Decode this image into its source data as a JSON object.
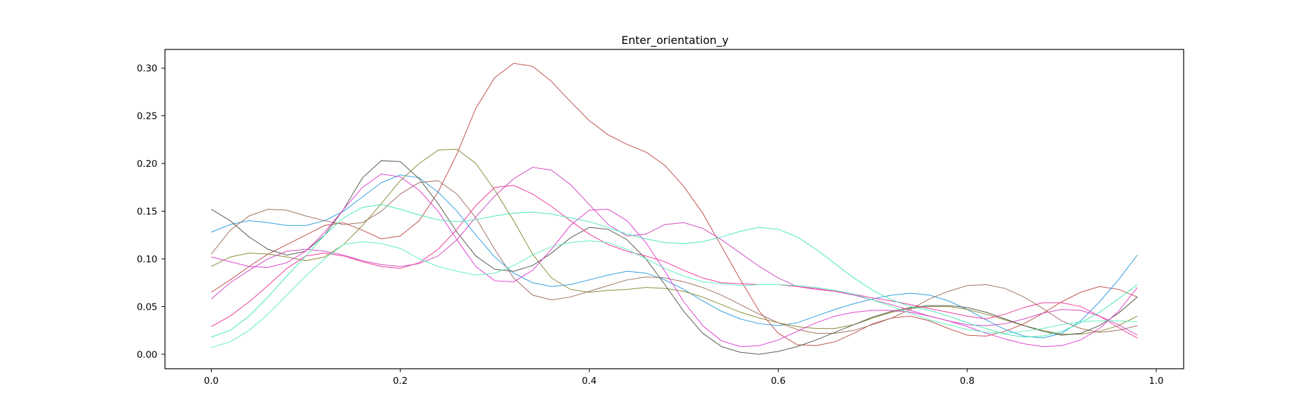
{
  "chart_data": {
    "type": "line",
    "title": "Enter_orientation_y",
    "xlabel": "",
    "ylabel": "",
    "xlim": [
      -0.049,
      1.029
    ],
    "ylim": [
      -0.0152,
      0.3196
    ],
    "xticks": [
      0.0,
      0.2,
      0.4,
      0.6,
      0.8,
      1.0
    ],
    "xtick_labels": [
      "0.0",
      "0.2",
      "0.4",
      "0.6",
      "0.8",
      "1.0"
    ],
    "yticks": [
      0.0,
      0.05,
      0.1,
      0.15,
      0.2,
      0.25,
      0.3
    ],
    "ytick_labels": [
      "0.00",
      "0.05",
      "0.10",
      "0.15",
      "0.20",
      "0.25",
      "0.30"
    ],
    "grid": false,
    "legend": false,
    "x": [
      0.0,
      0.02,
      0.04,
      0.06,
      0.08,
      0.1,
      0.12,
      0.14,
      0.16,
      0.18,
      0.2,
      0.22,
      0.24,
      0.26,
      0.28,
      0.3,
      0.32,
      0.34,
      0.36,
      0.38,
      0.4,
      0.42,
      0.44,
      0.46,
      0.48,
      0.5,
      0.52,
      0.54,
      0.56,
      0.58,
      0.6,
      0.62,
      0.64,
      0.66,
      0.68,
      0.7,
      0.72,
      0.74,
      0.76,
      0.78,
      0.8,
      0.82,
      0.84,
      0.86,
      0.88,
      0.9,
      0.92,
      0.94,
      0.96,
      0.98
    ],
    "series": [
      {
        "color": "#c0504d",
        "values": [
          0.065,
          0.078,
          0.092,
          0.105,
          0.115,
          0.125,
          0.135,
          0.138,
          0.13,
          0.121,
          0.124,
          0.14,
          0.17,
          0.21,
          0.258,
          0.29,
          0.305,
          0.302,
          0.286,
          0.265,
          0.245,
          0.23,
          0.22,
          0.212,
          0.198,
          0.176,
          0.148,
          0.113,
          0.078,
          0.045,
          0.022,
          0.01,
          0.009,
          0.013,
          0.022,
          0.032,
          0.038,
          0.04,
          0.035,
          0.027,
          0.02,
          0.019,
          0.024,
          0.032,
          0.043,
          0.055,
          0.065,
          0.071,
          0.068,
          0.06
        ]
      },
      {
        "color": "#2f9fe0",
        "values": [
          0.128,
          0.136,
          0.14,
          0.138,
          0.135,
          0.135,
          0.14,
          0.15,
          0.165,
          0.18,
          0.188,
          0.185,
          0.17,
          0.15,
          0.125,
          0.102,
          0.085,
          0.075,
          0.071,
          0.073,
          0.078,
          0.083,
          0.087,
          0.085,
          0.078,
          0.068,
          0.056,
          0.045,
          0.037,
          0.032,
          0.03,
          0.033,
          0.04,
          0.047,
          0.053,
          0.058,
          0.062,
          0.064,
          0.062,
          0.056,
          0.047,
          0.036,
          0.026,
          0.019,
          0.017,
          0.022,
          0.035,
          0.055,
          0.078,
          0.104
        ]
      },
      {
        "color": "#8a8a3a",
        "values": [
          0.092,
          0.102,
          0.106,
          0.105,
          0.102,
          0.098,
          0.102,
          0.115,
          0.135,
          0.158,
          0.182,
          0.2,
          0.214,
          0.215,
          0.2,
          0.172,
          0.14,
          0.105,
          0.08,
          0.068,
          0.065,
          0.067,
          0.068,
          0.07,
          0.069,
          0.066,
          0.06,
          0.052,
          0.044,
          0.038,
          0.033,
          0.029,
          0.027,
          0.027,
          0.031,
          0.038,
          0.044,
          0.048,
          0.05,
          0.05,
          0.047,
          0.042,
          0.036,
          0.03,
          0.025,
          0.021,
          0.021,
          0.024,
          0.03,
          0.04
        ]
      },
      {
        "color": "#a07060",
        "values": [
          0.105,
          0.13,
          0.145,
          0.152,
          0.151,
          0.145,
          0.14,
          0.136,
          0.138,
          0.15,
          0.168,
          0.18,
          0.182,
          0.168,
          0.143,
          0.11,
          0.08,
          0.062,
          0.057,
          0.06,
          0.066,
          0.072,
          0.078,
          0.081,
          0.08,
          0.076,
          0.07,
          0.062,
          0.052,
          0.042,
          0.033,
          0.026,
          0.022,
          0.022,
          0.025,
          0.031,
          0.038,
          0.047,
          0.058,
          0.066,
          0.072,
          0.073,
          0.069,
          0.06,
          0.048,
          0.035,
          0.027,
          0.023,
          0.025,
          0.03
        ]
      },
      {
        "color": "#555c4a",
        "values": [
          0.152,
          0.14,
          0.123,
          0.11,
          0.104,
          0.108,
          0.125,
          0.152,
          0.185,
          0.203,
          0.202,
          0.184,
          0.158,
          0.128,
          0.103,
          0.089,
          0.087,
          0.093,
          0.106,
          0.122,
          0.133,
          0.131,
          0.12,
          0.1,
          0.073,
          0.045,
          0.022,
          0.008,
          0.002,
          0.0,
          0.003,
          0.008,
          0.015,
          0.023,
          0.031,
          0.039,
          0.045,
          0.049,
          0.051,
          0.051,
          0.049,
          0.044,
          0.037,
          0.03,
          0.024,
          0.02,
          0.022,
          0.03,
          0.043,
          0.06
        ]
      },
      {
        "color": "#e040d0",
        "values": [
          0.102,
          0.097,
          0.092,
          0.091,
          0.096,
          0.108,
          0.128,
          0.152,
          0.175,
          0.189,
          0.186,
          0.172,
          0.15,
          0.12,
          0.092,
          0.077,
          0.076,
          0.088,
          0.11,
          0.135,
          0.151,
          0.152,
          0.14,
          0.117,
          0.087,
          0.055,
          0.03,
          0.014,
          0.008,
          0.009,
          0.015,
          0.024,
          0.033,
          0.04,
          0.044,
          0.046,
          0.046,
          0.044,
          0.04,
          0.035,
          0.029,
          0.022,
          0.016,
          0.011,
          0.008,
          0.009,
          0.015,
          0.027,
          0.045,
          0.07
        ]
      },
      {
        "color": "#d04cc0",
        "values": [
          0.058,
          0.075,
          0.088,
          0.1,
          0.108,
          0.11,
          0.108,
          0.104,
          0.098,
          0.094,
          0.092,
          0.095,
          0.103,
          0.12,
          0.144,
          0.166,
          0.184,
          0.196,
          0.193,
          0.178,
          0.157,
          0.136,
          0.124,
          0.126,
          0.136,
          0.138,
          0.132,
          0.12,
          0.106,
          0.092,
          0.08,
          0.071,
          0.068,
          0.066,
          0.062,
          0.057,
          0.052,
          0.046,
          0.04,
          0.035,
          0.031,
          0.03,
          0.032,
          0.037,
          0.043,
          0.047,
          0.046,
          0.04,
          0.031,
          0.02
        ]
      },
      {
        "color": "#ee3a9a",
        "values": [
          0.029,
          0.04,
          0.055,
          0.072,
          0.09,
          0.103,
          0.106,
          0.103,
          0.097,
          0.092,
          0.09,
          0.096,
          0.11,
          0.131,
          0.156,
          0.175,
          0.177,
          0.168,
          0.155,
          0.14,
          0.126,
          0.115,
          0.108,
          0.103,
          0.097,
          0.088,
          0.08,
          0.075,
          0.074,
          0.073,
          0.073,
          0.071,
          0.069,
          0.066,
          0.063,
          0.059,
          0.056,
          0.052,
          0.048,
          0.044,
          0.04,
          0.037,
          0.042,
          0.049,
          0.054,
          0.054,
          0.05,
          0.04,
          0.028,
          0.017
        ]
      },
      {
        "color": "#48e8b8",
        "values": [
          0.018,
          0.025,
          0.04,
          0.06,
          0.082,
          0.103,
          0.125,
          0.143,
          0.154,
          0.157,
          0.152,
          0.146,
          0.141,
          0.139,
          0.141,
          0.145,
          0.148,
          0.149,
          0.147,
          0.143,
          0.139,
          0.133,
          0.126,
          0.121,
          0.117,
          0.116,
          0.118,
          0.123,
          0.129,
          0.133,
          0.131,
          0.123,
          0.11,
          0.095,
          0.08,
          0.067,
          0.057,
          0.05,
          0.046,
          0.04,
          0.033,
          0.027,
          0.021,
          0.018,
          0.019,
          0.024,
          0.033,
          0.044,
          0.058,
          0.073
        ]
      },
      {
        "color": "#5ef0c0",
        "values": [
          0.007,
          0.013,
          0.025,
          0.042,
          0.062,
          0.082,
          0.1,
          0.115,
          0.118,
          0.116,
          0.111,
          0.1,
          0.092,
          0.087,
          0.083,
          0.085,
          0.093,
          0.104,
          0.113,
          0.117,
          0.119,
          0.117,
          0.11,
          0.1,
          0.09,
          0.082,
          0.076,
          0.074,
          0.072,
          0.073,
          0.073,
          0.072,
          0.07,
          0.067,
          0.063,
          0.057,
          0.05,
          0.043,
          0.036,
          0.031,
          0.026,
          0.023,
          0.022,
          0.024,
          0.027,
          0.031,
          0.034,
          0.035,
          0.035,
          0.034
        ]
      }
    ]
  }
}
